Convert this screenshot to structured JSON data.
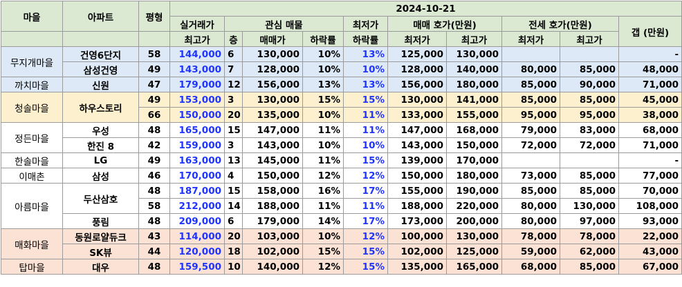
{
  "header": {
    "date": "2024-10-21",
    "village": "마을",
    "apartment": "아파트",
    "size": "평형",
    "deal_top": "실거래가",
    "deal_sub": "최고가",
    "interest": "관심 매물",
    "floor": "층",
    "price": "매매가",
    "drop": "하락률",
    "min_top": "최저가",
    "min_sub": "하락률",
    "sale_quote": "매매 호가(만원)",
    "jeonse_quote": "전세 호가(만원)",
    "low": "최저가",
    "high": "최고가",
    "gap": "갭 (만원)"
  },
  "villages": {
    "v1": "무지개마을",
    "v2": "까치마을",
    "v3": "청솔마을",
    "v4": "정든마을",
    "v5": "한솔마을",
    "v6": "이매촌",
    "v7": "아름마을",
    "v8": "매화마을",
    "v9": "탑마을"
  },
  "rows": [
    {
      "apt": "건영6단지",
      "size": "58",
      "deal": "144,000",
      "floor": "6",
      "price": "130,000",
      "drop": "10%",
      "min_drop": "13%",
      "sale_low": "125,000",
      "sale_high": "130,000",
      "j_low": "",
      "j_high": "",
      "gap": "-"
    },
    {
      "apt": "삼성건영",
      "size": "49",
      "deal": "143,000",
      "floor": "7",
      "price": "128,000",
      "drop": "10%",
      "min_drop": "10%",
      "sale_low": "128,000",
      "sale_high": "140,000",
      "j_low": "80,000",
      "j_high": "85,000",
      "gap": "48,000"
    },
    {
      "apt": "신원",
      "size": "47",
      "deal": "179,000",
      "floor": "12",
      "price": "156,000",
      "drop": "13%",
      "min_drop": "13%",
      "sale_low": "156,000",
      "sale_high": "180,000",
      "j_low": "85,000",
      "j_high": "90,000",
      "gap": "71,000"
    },
    {
      "apt": "하우스토리",
      "size": "49",
      "deal": "153,000",
      "floor": "3",
      "price": "130,000",
      "drop": "15%",
      "min_drop": "15%",
      "sale_low": "130,000",
      "sale_high": "141,000",
      "j_low": "85,000",
      "j_high": "85,000",
      "gap": "45,000"
    },
    {
      "apt": "",
      "size": "66",
      "deal": "150,000",
      "floor": "20",
      "price": "135,000",
      "drop": "10%",
      "min_drop": "11%",
      "sale_low": "133,000",
      "sale_high": "155,000",
      "j_low": "95,000",
      "j_high": "95,000",
      "gap": "38,000"
    },
    {
      "apt": "우성",
      "size": "48",
      "deal": "165,000",
      "floor": "15",
      "price": "147,000",
      "drop": "11%",
      "min_drop": "11%",
      "sale_low": "147,000",
      "sale_high": "168,000",
      "j_low": "79,000",
      "j_high": "83,000",
      "gap": "68,000"
    },
    {
      "apt": "한진 8",
      "size": "42",
      "deal": "159,000",
      "floor": "3",
      "price": "143,000",
      "drop": "10%",
      "min_drop": "10%",
      "sale_low": "143,000",
      "sale_high": "150,000",
      "j_low": "72,000",
      "j_high": "72,000",
      "gap": "71,000"
    },
    {
      "apt": "LG",
      "size": "49",
      "deal": "163,000",
      "floor": "13",
      "price": "145,000",
      "drop": "11%",
      "min_drop": "15%",
      "sale_low": "139,000",
      "sale_high": "170,000",
      "j_low": "",
      "j_high": "",
      "gap": "-"
    },
    {
      "apt": "삼성",
      "size": "46",
      "deal": "170,000",
      "floor": "4",
      "price": "150,000",
      "drop": "12%",
      "min_drop": "12%",
      "sale_low": "150,000",
      "sale_high": "180,000",
      "j_low": "73,000",
      "j_high": "85,000",
      "gap": "77,000"
    },
    {
      "apt": "두산삼호",
      "size": "48",
      "deal": "187,000",
      "floor": "15",
      "price": "158,000",
      "drop": "16%",
      "min_drop": "17%",
      "sale_low": "155,000",
      "sale_high": "190,000",
      "j_low": "85,000",
      "j_high": "85,000",
      "gap": "70,000"
    },
    {
      "apt": "",
      "size": "58",
      "deal": "212,000",
      "floor": "14",
      "price": "188,000",
      "drop": "11%",
      "min_drop": "11%",
      "sale_low": "188,000",
      "sale_high": "220,000",
      "j_low": "80,000",
      "j_high": "130,000",
      "gap": "108,000"
    },
    {
      "apt": "풍림",
      "size": "48",
      "deal": "209,000",
      "floor": "6",
      "price": "179,000",
      "drop": "14%",
      "min_drop": "17%",
      "sale_low": "173,000",
      "sale_high": "200,000",
      "j_low": "80,000",
      "j_high": "97,000",
      "gap": "93,000"
    },
    {
      "apt": "동원로얄듀크",
      "size": "43",
      "deal": "114,000",
      "floor": "20",
      "price": "103,000",
      "drop": "10%",
      "min_drop": "12%",
      "sale_low": "100,000",
      "sale_high": "130,000",
      "j_low": "78,000",
      "j_high": "78,000",
      "gap": "22,000"
    },
    {
      "apt": "SK뷰",
      "size": "44",
      "deal": "120,000",
      "floor": "18",
      "price": "102,000",
      "drop": "15%",
      "min_drop": "15%",
      "sale_low": "102,000",
      "sale_high": "125,000",
      "j_low": "59,000",
      "j_high": "62,000",
      "gap": "43,000"
    },
    {
      "apt": "대우",
      "size": "48",
      "deal": "159,500",
      "floor": "10",
      "price": "140,000",
      "drop": "12%",
      "min_drop": "15%",
      "sale_low": "135,000",
      "sale_high": "165,000",
      "j_low": "68,000",
      "j_high": "85,000",
      "gap": "67,000"
    }
  ]
}
